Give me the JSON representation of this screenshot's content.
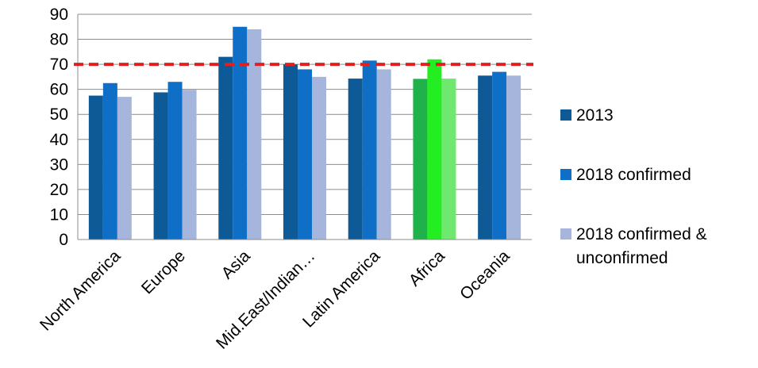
{
  "chart_data": {
    "type": "bar",
    "title": "",
    "xlabel": "",
    "ylabel": "",
    "ylim": [
      0,
      90
    ],
    "ytick_step": 10,
    "grid": true,
    "legend_position": "right",
    "categories": [
      "North America",
      "Europe",
      "Asia",
      "Mid.East/Indian…",
      "Latin America",
      "Africa",
      "Oceania"
    ],
    "series": [
      {
        "name": "2013",
        "color": "#0d5a96",
        "values": [
          57.5,
          58.8,
          73.0,
          70.0,
          64.3,
          64.2,
          65.5
        ]
      },
      {
        "name": "2018 confirmed",
        "color": "#0f6fc6",
        "values": [
          62.5,
          63.0,
          85.0,
          68.0,
          71.5,
          72.0,
          67.0
        ]
      },
      {
        "name": "2018 confirmed & unconfirmed",
        "color": "#a5b5dc",
        "values": [
          57.0,
          59.8,
          84.0,
          65.0,
          68.0,
          64.3,
          65.5
        ]
      }
    ],
    "legend_label_lines": [
      [
        "2013"
      ],
      [
        "2018 confirmed"
      ],
      [
        "2018 confirmed &",
        "unconfirmed"
      ]
    ],
    "highlight": {
      "category": "Africa",
      "colors": [
        "#20b24a",
        "#22ee22",
        "#6ee86e"
      ]
    },
    "reference_line": {
      "value": 70,
      "color": "#e02020",
      "style": "dashed"
    }
  }
}
